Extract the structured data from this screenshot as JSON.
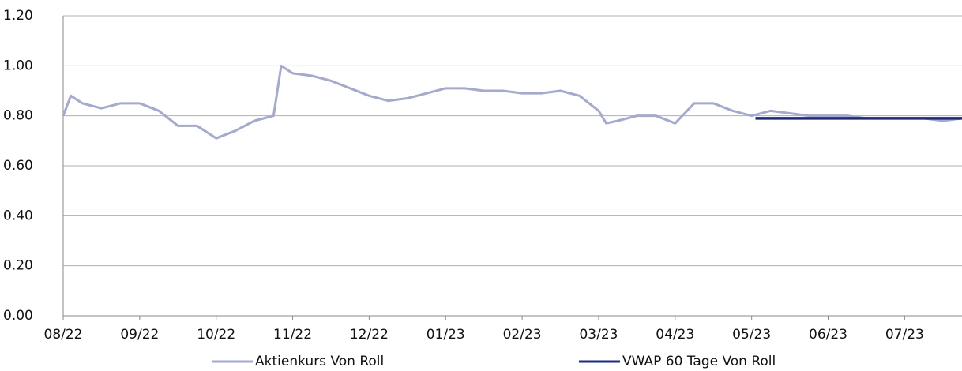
{
  "chart_data": {
    "type": "line",
    "xlim": [
      0,
      11.75
    ],
    "xticks": [
      {
        "value": 0,
        "label": "08/22"
      },
      {
        "value": 1,
        "label": "09/22"
      },
      {
        "value": 2,
        "label": "10/22"
      },
      {
        "value": 3,
        "label": "11/22"
      },
      {
        "value": 4,
        "label": "12/22"
      },
      {
        "value": 5,
        "label": "01/23"
      },
      {
        "value": 6,
        "label": "02/23"
      },
      {
        "value": 7,
        "label": "03/23"
      },
      {
        "value": 8,
        "label": "04/23"
      },
      {
        "value": 9,
        "label": "05/23"
      },
      {
        "value": 10,
        "label": "06/23"
      },
      {
        "value": 11,
        "label": "07/23"
      }
    ],
    "ylim": [
      0,
      1.2
    ],
    "yticks": [
      {
        "value": 0,
        "label": "0.00"
      },
      {
        "value": 0.2,
        "label": "0.20"
      },
      {
        "value": 0.4,
        "label": "0.40"
      },
      {
        "value": 0.6,
        "label": "0.60"
      },
      {
        "value": 0.8,
        "label": "0.80"
      },
      {
        "value": 1,
        "label": "1.00"
      },
      {
        "value": 1.2,
        "label": "1.20"
      }
    ],
    "grid": true,
    "legend": "bottom",
    "series": [
      {
        "name": "Aktienkurs Von Roll",
        "color": "#a3a9d0",
        "x": [
          0,
          0.1,
          0.25,
          0.5,
          0.75,
          1,
          1.25,
          1.5,
          1.75,
          2,
          2.25,
          2.5,
          2.75,
          2.85,
          3,
          3.25,
          3.5,
          3.75,
          4,
          4.25,
          4.5,
          4.75,
          5,
          5.25,
          5.5,
          5.75,
          6,
          6.25,
          6.5,
          6.75,
          7,
          7.1,
          7.25,
          7.5,
          7.75,
          8,
          8.25,
          8.5,
          8.75,
          9,
          9.25,
          9.5,
          9.75,
          10,
          10.25,
          10.5,
          10.75,
          11,
          11.25,
          11.5,
          11.75
        ],
        "values": [
          0.8,
          0.88,
          0.85,
          0.83,
          0.85,
          0.85,
          0.82,
          0.76,
          0.76,
          0.71,
          0.74,
          0.78,
          0.8,
          1.0,
          0.97,
          0.96,
          0.94,
          0.91,
          0.88,
          0.86,
          0.87,
          0.89,
          0.91,
          0.91,
          0.9,
          0.9,
          0.89,
          0.89,
          0.9,
          0.88,
          0.82,
          0.77,
          0.78,
          0.8,
          0.8,
          0.77,
          0.85,
          0.85,
          0.82,
          0.8,
          0.82,
          0.81,
          0.8,
          0.8,
          0.8,
          0.79,
          0.79,
          0.79,
          0.79,
          0.78,
          0.79
        ]
      },
      {
        "name": "VWAP 60 Tage Von Roll",
        "color": "#1f2a78",
        "x": [
          9.05,
          11.75
        ],
        "values": [
          0.79,
          0.79
        ]
      }
    ]
  }
}
